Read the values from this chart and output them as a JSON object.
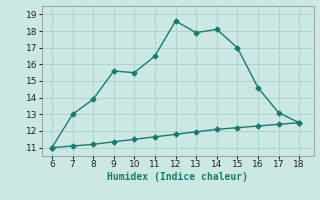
{
  "x_main": [
    6,
    7,
    8,
    9,
    10,
    11,
    12,
    13,
    14,
    15,
    16,
    17,
    18
  ],
  "y_main": [
    11.0,
    13.0,
    13.9,
    15.6,
    15.5,
    16.5,
    18.6,
    17.9,
    18.1,
    17.0,
    14.6,
    13.1,
    12.5
  ],
  "x_base": [
    6,
    7,
    8,
    9,
    10,
    11,
    12,
    13,
    14,
    15,
    16,
    17,
    18
  ],
  "y_base": [
    11.0,
    11.1,
    11.2,
    11.35,
    11.5,
    11.65,
    11.8,
    11.95,
    12.1,
    12.2,
    12.3,
    12.4,
    12.5
  ],
  "line_color": "#1a7a6e",
  "bg_color": "#cce8e4",
  "grid_color": "#aed4d0",
  "xlabel": "Humidex (Indice chaleur)",
  "xlim": [
    5.5,
    18.7
  ],
  "ylim": [
    10.5,
    19.5
  ],
  "xticks": [
    6,
    7,
    8,
    9,
    10,
    11,
    12,
    13,
    14,
    15,
    16,
    17,
    18
  ],
  "yticks": [
    11,
    12,
    13,
    14,
    15,
    16,
    17,
    18,
    19
  ],
  "label_fontsize": 7,
  "tick_fontsize": 6.5,
  "marker": "D",
  "marker_size": 2.5,
  "line_width": 1.0
}
